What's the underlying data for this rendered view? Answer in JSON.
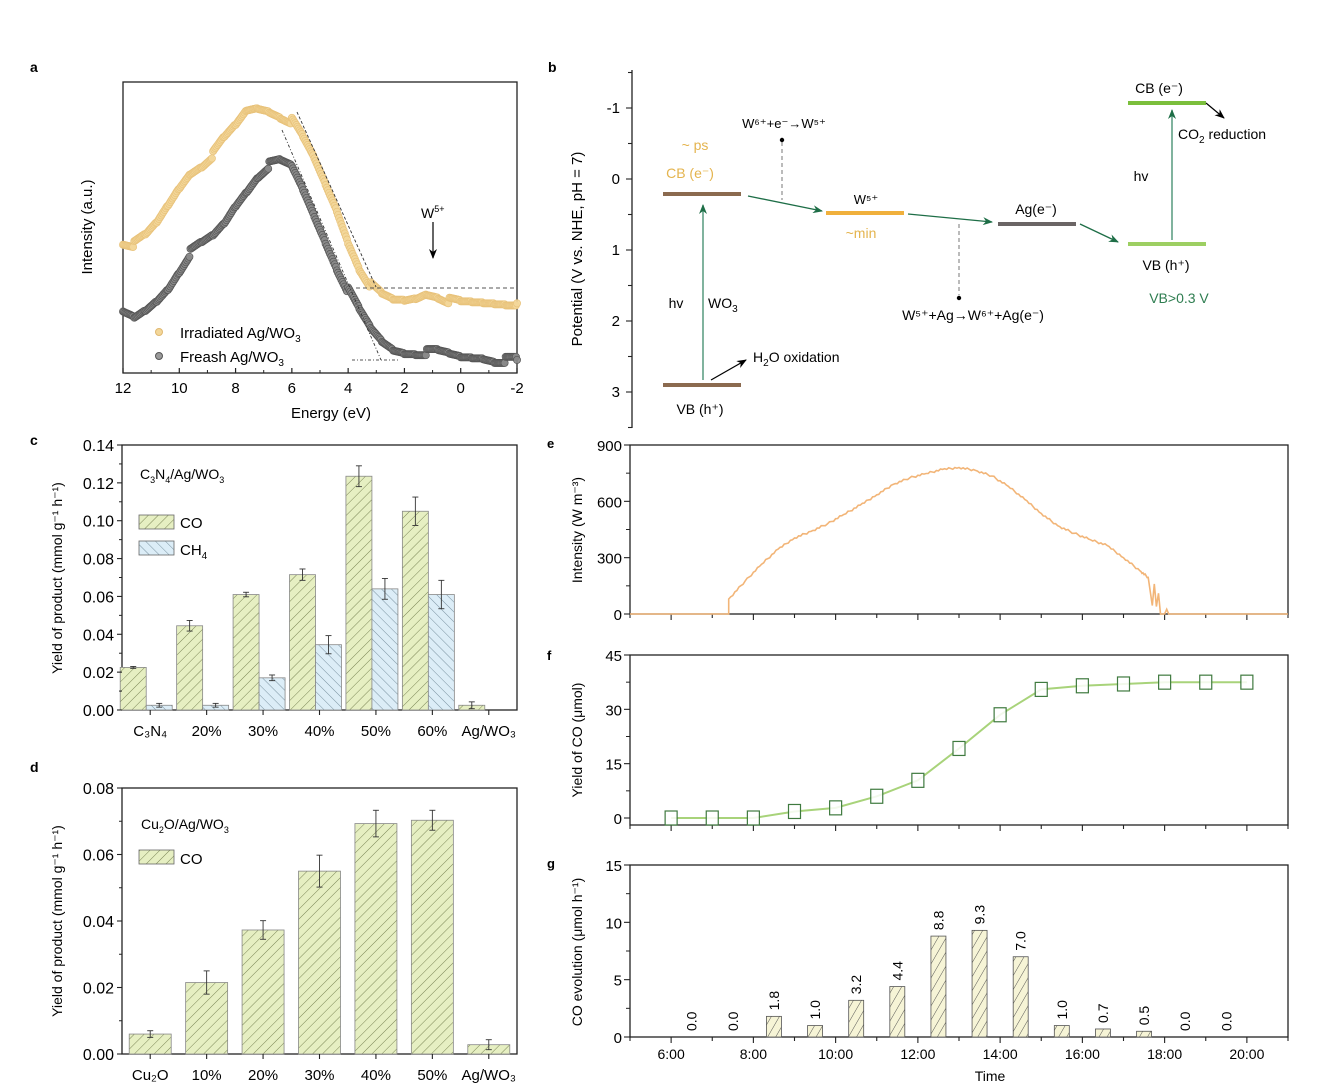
{
  "figure": {
    "panel_labels": [
      "a",
      "b",
      "c",
      "d",
      "e",
      "f",
      "g"
    ]
  },
  "chart_data": [
    {
      "id": "a",
      "type": "scatter",
      "title": "",
      "xlabel": "Energy (eV)",
      "ylabel": "Intensity (a.u.)",
      "xlim": [
        12,
        -2
      ],
      "xticks": [
        "12",
        "10",
        "8",
        "6",
        "4",
        "2",
        "0",
        "-2"
      ],
      "xtick_values": [
        12,
        10,
        8,
        6,
        4,
        2,
        0,
        -2
      ],
      "ylim": [
        0,
        1
      ],
      "legend_position": "bottom-left",
      "annotation": {
        "text": "W",
        "sup": "5+",
        "x": 1.0
      },
      "series": [
        {
          "name": "Irradiated Ag/WO₃",
          "color": "#f3d79a",
          "edge": "#e8c27a",
          "x": [
            12,
            11.6,
            11.2,
            10.8,
            10.4,
            10.0,
            9.6,
            9.2,
            8.8,
            8.4,
            8.0,
            7.6,
            7.2,
            6.8,
            6.4,
            6.0,
            5.6,
            5.2,
            4.8,
            4.4,
            4.0,
            3.6,
            3.2,
            2.8,
            2.4,
            2.0,
            1.6,
            1.2,
            0.8,
            0.4,
            0.0,
            -0.4,
            -0.8,
            -1.2,
            -1.6,
            -2.0
          ],
          "y": [
            0.48,
            0.47,
            0.5,
            0.55,
            0.62,
            0.69,
            0.75,
            0.78,
            0.82,
            0.88,
            0.93,
            0.99,
            1.0,
            0.99,
            0.97,
            0.95,
            0.88,
            0.8,
            0.7,
            0.6,
            0.48,
            0.38,
            0.31,
            0.27,
            0.25,
            0.25,
            0.26,
            0.28,
            0.27,
            0.25,
            0.24,
            0.24,
            0.24,
            0.24,
            0.24,
            0.24
          ]
        },
        {
          "name": "Freash Ag/WO₃",
          "color": "#8a8a8a",
          "edge": "#555555",
          "x": [
            12,
            11.6,
            11.2,
            10.8,
            10.4,
            10.0,
            9.6,
            9.2,
            8.8,
            8.4,
            8.0,
            7.6,
            7.2,
            6.8,
            6.4,
            6.0,
            5.6,
            5.2,
            4.8,
            4.4,
            4.0,
            3.6,
            3.2,
            2.8,
            2.4,
            2.0,
            1.6,
            1.2,
            0.8,
            0.4,
            0.0,
            -0.4,
            -0.8,
            -1.2,
            -1.6,
            -2.0
          ],
          "y": [
            0.2,
            0.18,
            0.21,
            0.25,
            0.3,
            0.37,
            0.44,
            0.47,
            0.5,
            0.55,
            0.62,
            0.68,
            0.74,
            0.78,
            0.79,
            0.77,
            0.68,
            0.58,
            0.48,
            0.38,
            0.29,
            0.21,
            0.14,
            0.09,
            0.06,
            0.05,
            0.05,
            0.05,
            0.05,
            0.04,
            0.03,
            0.03,
            0.03,
            0.02,
            0.02,
            0.02
          ]
        }
      ]
    },
    {
      "id": "b",
      "type": "diagram",
      "ylabel": "Potential (V vs. NHE, pH = 7)",
      "ylim": [
        -1.5,
        3.5
      ],
      "yticks": [
        "-1",
        "0",
        "1",
        "2",
        "3"
      ],
      "ytick_values": [
        -1,
        0,
        1,
        2,
        3
      ],
      "levels": [
        {
          "name": "WO3 CB",
          "value": 0.2,
          "color": "#8b6a4f"
        },
        {
          "name": "WO3 VB",
          "value": 2.9,
          "color": "#8b6a4f"
        },
        {
          "name": "W5+",
          "value": 0.47,
          "color": "#f0b03c"
        },
        {
          "name": "Ag",
          "value": 0.63,
          "color": "#6b6565"
        },
        {
          "name": "Partner VB",
          "value": 0.9,
          "color": "#9dcf62"
        },
        {
          "name": "Partner CB",
          "value": -1.07,
          "color": "#7bbf3c"
        }
      ],
      "labels": {
        "cb_wo3": "CB (e⁻)",
        "ps": "~ ps",
        "vb_wo3": "VB (h⁺)",
        "hv1": "hv",
        "wo3": "WO₃",
        "h2o": "H₂O oxidation",
        "w5": "W⁵⁺",
        "min": "~min",
        "reaction1": "W⁶⁺+e⁻→W⁵⁺",
        "ag": "Ag(e⁻)",
        "reaction2": "W⁵⁺+Ag→W⁶⁺+Ag(e⁻)",
        "cb2": "CB (e⁻)",
        "co2": "CO₂ reduction",
        "hv2": "hv",
        "vb2": "VB (h⁺)",
        "vb_cond": "VB>0.3 V"
      },
      "colors": {
        "arrow": "#1e6e47",
        "vbtext": "#2e7d50",
        "orange_text": "#e4b44e"
      }
    },
    {
      "id": "c",
      "type": "bar",
      "title": "C₃N₄/Ag/WO₃",
      "xlabel": "",
      "ylabel": "Yield of product (mmol g⁻¹ h⁻¹)",
      "ylim": [
        0,
        0.14
      ],
      "yticks": [
        "0.00",
        "0.02",
        "0.04",
        "0.06",
        "0.08",
        "0.10",
        "0.12",
        "0.14"
      ],
      "ytick_values": [
        0,
        0.02,
        0.04,
        0.06,
        0.08,
        0.1,
        0.12,
        0.14
      ],
      "categories": [
        "C₃N₄",
        "20%",
        "30%",
        "40%",
        "50%",
        "60%",
        "Ag/WO₃"
      ],
      "legend_position": "top-left",
      "series": [
        {
          "name": "CO",
          "color": "#e6efc2",
          "values": [
            0.0225,
            0.0445,
            0.061,
            0.0715,
            0.1235,
            0.105,
            0.0025
          ],
          "errors": [
            0.0005,
            0.0028,
            0.0012,
            0.003,
            0.0055,
            0.0075,
            0.0018
          ]
        },
        {
          "name": "CH₄",
          "color": "#dcedf7",
          "values": [
            0.0025,
            0.0025,
            0.017,
            0.0345,
            0.064,
            0.061,
            0
          ],
          "errors": [
            0.001,
            0.001,
            0.0015,
            0.0048,
            0.0055,
            0.0075,
            0
          ]
        }
      ]
    },
    {
      "id": "d",
      "type": "bar",
      "title": "Cu₂O/Ag/WO₃",
      "xlabel": "",
      "ylabel": "Yield of product (mmol g⁻¹ h⁻¹)",
      "ylim": [
        0,
        0.08
      ],
      "yticks": [
        "0.00",
        "0.02",
        "0.04",
        "0.06",
        "0.08"
      ],
      "ytick_values": [
        0,
        0.02,
        0.04,
        0.06,
        0.08
      ],
      "categories": [
        "Cu₂O",
        "10%",
        "20%",
        "30%",
        "40%",
        "50%",
        "Ag/WO₃"
      ],
      "legend_position": "top-left",
      "series": [
        {
          "name": "CO",
          "color": "#e6efc2",
          "values": [
            0.006,
            0.0215,
            0.0373,
            0.055,
            0.0693,
            0.0703,
            0.0028
          ],
          "errors": [
            0.001,
            0.0035,
            0.0028,
            0.0048,
            0.004,
            0.003,
            0.0015
          ]
        }
      ]
    },
    {
      "id": "e",
      "type": "line",
      "title": "",
      "xlabel": "",
      "ylabel": "Intensity (W m⁻³)",
      "xlim": [
        5,
        21
      ],
      "ylim": [
        0,
        900
      ],
      "yticks": [
        "0",
        "300",
        "600",
        "900"
      ],
      "ytick_values": [
        0,
        300,
        600,
        900
      ],
      "color": "#f2b578",
      "x": [
        5.0,
        7.4,
        7.4,
        7.8,
        8.2,
        8.6,
        9.0,
        9.4,
        9.8,
        10.2,
        10.6,
        11.0,
        11.4,
        11.8,
        12.2,
        12.6,
        13.0,
        13.4,
        13.8,
        14.2,
        14.6,
        15.0,
        15.4,
        15.8,
        16.2,
        16.6,
        17.0,
        17.4,
        17.6,
        17.7,
        17.75,
        17.8,
        17.85,
        17.9,
        18.0,
        18.05,
        18.1,
        21.0
      ],
      "y": [
        0,
        0,
        80,
        175,
        265,
        345,
        405,
        440,
        480,
        530,
        580,
        635,
        690,
        725,
        748,
        770,
        780,
        765,
        735,
        680,
        610,
        535,
        470,
        430,
        395,
        365,
        300,
        230,
        195,
        45,
        160,
        40,
        110,
        0,
        0,
        25,
        0,
        0
      ]
    },
    {
      "id": "f",
      "type": "line",
      "title": "",
      "xlabel": "",
      "ylabel": "Yield of CO (μmol)",
      "xlim": [
        5,
        21
      ],
      "ylim": [
        -2,
        45
      ],
      "yticks": [
        "0",
        "15",
        "30",
        "45"
      ],
      "ytick_values": [
        0,
        15,
        30,
        45
      ],
      "line_color": "#a8d37a",
      "marker_edge": "#3f7a3f",
      "x": [
        6,
        7,
        8,
        9,
        10,
        11,
        12,
        13,
        14,
        15,
        16,
        17,
        18,
        19,
        20
      ],
      "y": [
        0,
        0,
        0,
        1.8,
        2.8,
        6.0,
        10.4,
        19.2,
        28.5,
        35.5,
        36.5,
        37.0,
        37.5,
        37.5,
        37.5
      ]
    },
    {
      "id": "g",
      "type": "bar",
      "title": "",
      "xlabel": "Time",
      "ylabel": "CO evolution (μmol h⁻¹)",
      "xlim": [
        5,
        21
      ],
      "ylim": [
        0,
        15
      ],
      "yticks": [
        "0",
        "5",
        "10",
        "15"
      ],
      "ytick_values": [
        0,
        5,
        10,
        15
      ],
      "xticks": [
        "6:00",
        "8:00",
        "10:00",
        "12:00",
        "14:00",
        "16:00",
        "18:00",
        "20:00"
      ],
      "xtick_values": [
        6,
        8,
        10,
        12,
        14,
        16,
        18,
        20
      ],
      "color": "#f6f4d6",
      "x": [
        6.5,
        7.5,
        8.5,
        9.5,
        10.5,
        11.5,
        12.5,
        13.5,
        14.5,
        15.5,
        16.5,
        17.5,
        18.5,
        19.5
      ],
      "values": [
        0.0,
        0.0,
        1.8,
        1.0,
        3.2,
        4.4,
        8.8,
        9.3,
        7.0,
        1.0,
        0.7,
        0.5,
        0.0,
        0.0
      ],
      "labels": [
        "0.0",
        "0.0",
        "1.8",
        "1.0",
        "3.2",
        "4.4",
        "8.8",
        "9.3",
        "7.0",
        "1.0",
        "0.7",
        "0.5",
        "0.0",
        "0.0"
      ]
    }
  ]
}
